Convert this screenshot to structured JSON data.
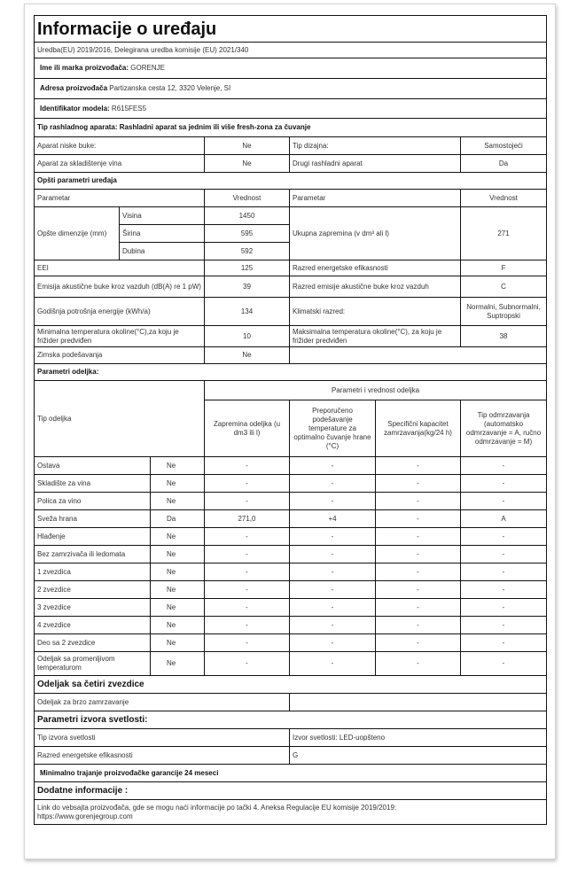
{
  "title": "Informacije o uređaju",
  "subtitle": "Uredba(EU) 2019/2016, Delegirana uredba komisije (EU) 2021/340",
  "manufacturer": {
    "label": "Ime ili marka proizvođača:",
    "value": "GORENJE"
  },
  "address": {
    "label": "Adresa proizvođača",
    "value": "Partizanska cesta 12, 3320 Velenje, SI"
  },
  "model": {
    "label": "Identifikator modela:",
    "value": "R615FES5"
  },
  "appliance_type": "Tip rashladnog aparata: Rashladni aparat sa jednim ili više fresh-zona za čuvanje",
  "flags": [
    {
      "label": "Aparat niske buke:",
      "value": "Ne",
      "label2": "Tip dizajna:",
      "value2": "Samostojeći"
    },
    {
      "label": "Aparat za skladištenje vina",
      "value": "Ne",
      "label2": "Drugi rashladni aparat",
      "value2": "Da"
    }
  ],
  "general": {
    "heading": "Opšti parametri uređaja",
    "col_param": "Parametar",
    "col_value": "Vrednost",
    "dimensions_label": "Opšte dimenzije (mm)",
    "height_label": "Visina",
    "height": "1450",
    "width_label": "Širina",
    "width": "595",
    "depth_label": "Dubina",
    "depth": "592",
    "volume_label": "Ukupna zapremina (v dm³ ali l)",
    "volume": "271",
    "eei_label": "EEI",
    "eei": "125",
    "energy_class_label": "Razred energetske efikasnosti",
    "energy_class": "F",
    "noise_label": "Emisija akustične buke kroz vazduh (dB(A) re 1 pW)",
    "noise": "39",
    "noise_class_label": "Razred emisije akustične buke kroz vazduh",
    "noise_class": "C",
    "annual_label": "Godišnja potrošnja energije (kWh/a)",
    "annual": "134",
    "climate_label": "Klimatski  razred:",
    "climate": "Normalni, Subnormalni, Suptropski",
    "min_temp_label": "Minimalna temperatura okoline(°C),za koju je frižider predviđen",
    "min_temp": "10",
    "max_temp_label": "Maksimalna temperatura okoline(°C), za koju je frižider predviđen",
    "max_temp": "38",
    "winter_label": "Zimska podešavanja",
    "winter": "Ne"
  },
  "compartments": {
    "heading": "Parametri odeljka:",
    "col_type": "Tip odeljka",
    "group_header": "Parametri i vrednost odeljka",
    "col_volume": "Zapremina odeljka (u dm3 ili l)",
    "col_temp": "Preporučeno podešavanje temperature za optimalno čuvanje hrane (°C)",
    "col_capacity": "Specifični kapacitet zamrzavanja(kg/24 h)",
    "col_defrost": "Tip odmrzavanja (automatsko odmrzavanje = A, ručno odmrzavanje = M)",
    "rows": [
      [
        "Ostava",
        "Ne",
        "-",
        "-",
        "-",
        "-"
      ],
      [
        "Skladište za vina",
        "Ne",
        "-",
        "-",
        "-",
        "-"
      ],
      [
        "Polica za vino",
        "Ne",
        "-",
        "-",
        "-",
        "-"
      ],
      [
        "Sveža  hrana",
        "Da",
        "271,0",
        "+4",
        "-",
        "A"
      ],
      [
        "Hlađenje",
        "Ne",
        "-",
        "-",
        "-",
        "-"
      ],
      [
        "Bez zamrzivača ili ledomata",
        "Ne",
        "-",
        "-",
        "-",
        "-"
      ],
      [
        "1 zvezdica",
        "Ne",
        "-",
        "-",
        "-",
        "-"
      ],
      [
        "2 zvezdice",
        "Ne",
        "-",
        "-",
        "-",
        "-"
      ],
      [
        "3 zvezdice",
        "Ne",
        "-",
        "-",
        "-",
        "-"
      ],
      [
        "4 zvezdice",
        "Ne",
        "-",
        "-",
        "-",
        "-"
      ],
      [
        "Deo sa 2 zvezdice",
        "Ne",
        "-",
        "-",
        "-",
        "-"
      ],
      [
        "Odeljak sa promenljivom temperaturom",
        "Ne",
        "-",
        "-",
        "-",
        "-"
      ]
    ]
  },
  "four_star": {
    "heading": "Odeljak sa četiri zvezdice",
    "fast_freeze_label": "Odeljak za brzo zamrzavanje",
    "fast_freeze": ""
  },
  "light": {
    "heading": "Parametri izvora svetlosti:",
    "type_label": "Tip izvora svetlosti",
    "type": "Izvor svetlosti: LED-uopšteno",
    "class_label": "Razred energetske efikasnosti",
    "class": "G"
  },
  "warranty": "Minimalno trajanje proizvođačke garancije  24 meseci",
  "extra": {
    "heading": "Dodatne informacije :",
    "text": "Link do vebsajta proizvođača, gde se mogu naći informacije po tački 4. Aneksa Regulacije EU komisije 2019/2019:",
    "link": "https://www.gorenjegroup.com"
  }
}
